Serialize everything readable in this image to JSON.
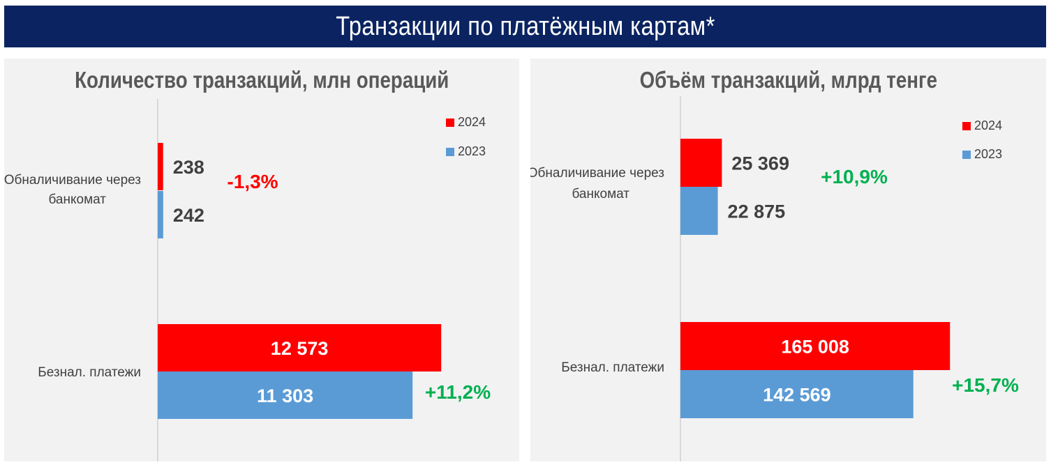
{
  "header": {
    "title": "Транзакции по платёжным картам*"
  },
  "colors": {
    "series_2024": "#ff0000",
    "series_2023": "#5b9bd5",
    "banner": "#0b2461",
    "positive": "#00b050",
    "negative": "#ff0000"
  },
  "chart_data": [
    {
      "type": "bar",
      "orientation": "horizontal",
      "title": "Количество транзакций, млн операций",
      "categories": [
        "Обналичивание через банкомат",
        "Безнал. платежи"
      ],
      "series": [
        {
          "name": "2024",
          "values": [
            238,
            12573
          ],
          "labels": [
            "238",
            "12 573"
          ]
        },
        {
          "name": "2023",
          "values": [
            242,
            11303
          ],
          "labels": [
            "242",
            "11 303"
          ]
        }
      ],
      "changes": [
        "-1,3%",
        "+11,2%"
      ],
      "legend": "top-right",
      "xlim": [
        0,
        13000
      ]
    },
    {
      "type": "bar",
      "orientation": "horizontal",
      "title": "Объём транзакций, млрд тенге",
      "categories": [
        "Обналичивание через банкомат",
        "Безнал. платежи"
      ],
      "series": [
        {
          "name": "2024",
          "values": [
            25369,
            165008
          ],
          "labels": [
            "25 369",
            "165 008"
          ]
        },
        {
          "name": "2023",
          "values": [
            22875,
            142569
          ],
          "labels": [
            "22 875",
            "142 569"
          ]
        }
      ],
      "changes": [
        "+10,9%",
        "+15,7%"
      ],
      "legend": "top-right",
      "xlim": [
        0,
        176000
      ]
    }
  ]
}
